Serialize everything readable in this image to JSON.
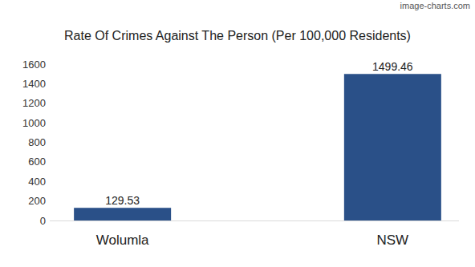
{
  "chart_data": {
    "type": "bar",
    "title": "Rate Of Crimes Against The Person (Per 100,000 Residents)",
    "watermark": "image-charts.com",
    "categories": [
      "Wolumla",
      "NSW"
    ],
    "values": [
      129.53,
      1499.46
    ],
    "color": "#2a5088",
    "ylim": [
      0,
      1600
    ],
    "yticks": [
      0,
      200,
      400,
      600,
      800,
      1000,
      1200,
      1400,
      1600
    ],
    "grid": false,
    "data_labels": true
  }
}
